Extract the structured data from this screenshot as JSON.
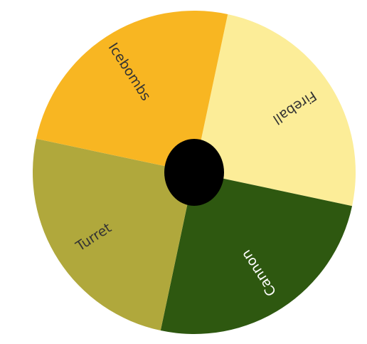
{
  "wheel": {
    "segments": [
      {
        "label": "Fireball",
        "color": "#FCED98",
        "text_color": "#333333"
      },
      {
        "label": "Cannon",
        "color": "#2E5810",
        "text_color": "#ffffff"
      },
      {
        "label": "Turret",
        "color": "#B0A83C",
        "text_color": "#333333"
      },
      {
        "label": "Icebombs",
        "color": "#F8B622",
        "text_color": "#333333"
      }
    ],
    "hub_color": "#000000"
  }
}
